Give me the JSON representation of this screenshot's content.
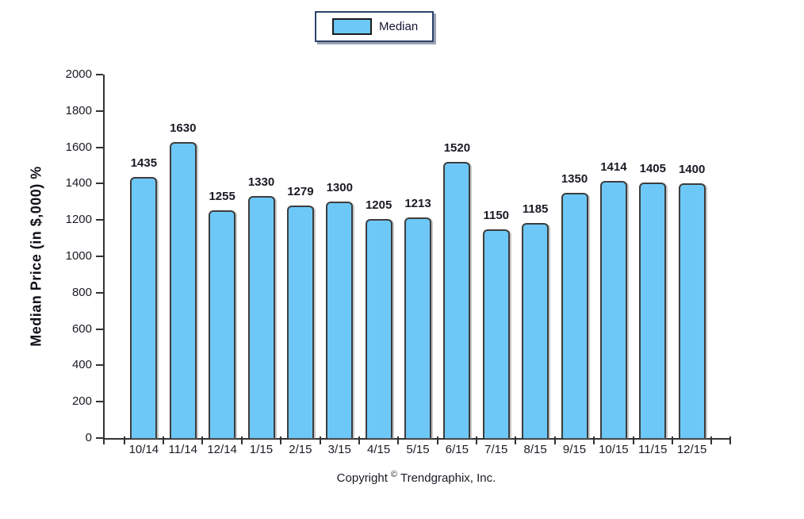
{
  "legend": {
    "label": "Median"
  },
  "chart_data": {
    "type": "bar",
    "title": "",
    "categories": [
      "10/14",
      "11/14",
      "12/14",
      "1/15",
      "2/15",
      "3/15",
      "4/15",
      "5/15",
      "6/15",
      "7/15",
      "8/15",
      "9/15",
      "10/15",
      "11/15",
      "12/15"
    ],
    "series": [
      {
        "name": "Median",
        "values": [
          1435,
          1630,
          1255,
          1330,
          1279,
          1300,
          1205,
          1213,
          1520,
          1150,
          1185,
          1350,
          1414,
          1405,
          1400
        ]
      }
    ],
    "xlabel": "",
    "ylabel": "Median Price (in $,000) %",
    "ylim": [
      0,
      2000
    ],
    "ytick_step": 200,
    "yticks": [
      0,
      200,
      400,
      600,
      800,
      1000,
      1200,
      1400,
      1600,
      1800,
      2000
    ],
    "grid": false,
    "legend_position": "top-center",
    "show_value_labels": true,
    "colors": {
      "bar_fill": "#6DC8F7",
      "bar_border": "#3D3D3D",
      "axis": "#333333",
      "text": "#1A1A24",
      "legend_border": "#2E4269",
      "legend_shadow": "#9AA3B2"
    }
  },
  "footer": {
    "prefix": "Copyright",
    "symbol": "©",
    "suffix": "Trendgraphix, Inc."
  }
}
